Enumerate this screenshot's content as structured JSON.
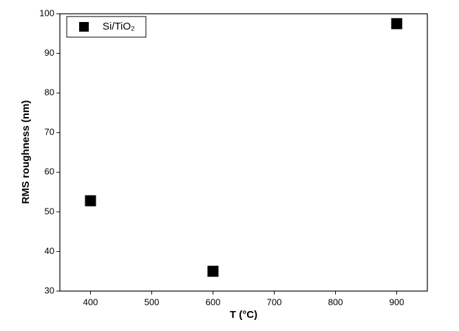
{
  "chart_data": {
    "type": "scatter",
    "x_label": "T (°C)",
    "y_label": "RMS roughness (nm)",
    "series": [
      {
        "name": "Si/TiO₂",
        "color": "#000000",
        "x": [
          400,
          600,
          900
        ],
        "values": [
          52.8,
          35,
          97.5
        ]
      }
    ],
    "xlim": [
      350,
      950
    ],
    "xticks": [
      400,
      500,
      600,
      700,
      800,
      900
    ],
    "ylim": [
      30,
      100
    ],
    "yticks": [
      30,
      40,
      50,
      60,
      70,
      80,
      90,
      100
    ],
    "legend": "upper-left",
    "grid": false
  }
}
